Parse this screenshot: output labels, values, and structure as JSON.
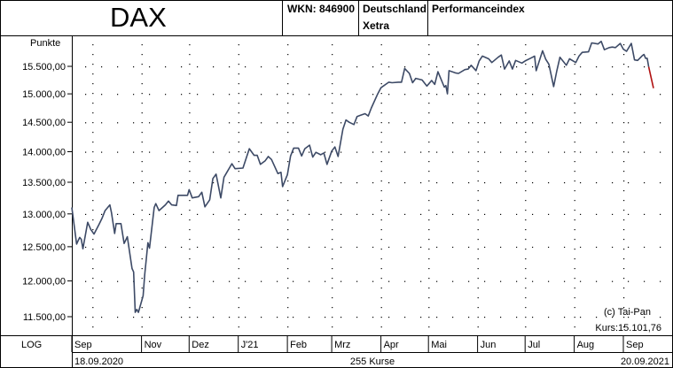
{
  "header": {
    "title": "DAX",
    "wkn": "WKN: 846900",
    "exchange_line1": "Deutschland",
    "exchange_line2": "Xetra",
    "index_type": "Performanceindex"
  },
  "footer": {
    "scale_mode": "LOG",
    "start_date": "18.09.2020",
    "count": "255 Kurse",
    "end_date": "20.09.2021"
  },
  "annotations": {
    "copyright": "(c) Tai-Pan",
    "last_price": "Kurs:15.101,76"
  },
  "colors": {
    "line": "#3d4a66",
    "last_segment": "#b01010",
    "grid_dots": "#000000"
  },
  "chart_data": {
    "type": "line",
    "ylabel": "Punkte",
    "y_scale": "log",
    "ylim": [
      11300,
      16500
    ],
    "y_ticks": [
      11500,
      12000,
      12500,
      13000,
      13500,
      14000,
      14500,
      15000,
      15500
    ],
    "y_tick_labels": [
      "11.500,00",
      "12.000,00",
      "12.500,00",
      "13.000,00",
      "13.500,00",
      "14.000,00",
      "14.500,00",
      "15.000,00",
      "15.500,00"
    ],
    "x_range": [
      "2020-09-18",
      "2021-09-20"
    ],
    "x_ticks": [
      "2020-09-18",
      "2020-11-01",
      "2020-12-01",
      "2021-01-01",
      "2021-02-01",
      "2021-03-01",
      "2021-04-01",
      "2021-05-01",
      "2021-06-01",
      "2021-07-01",
      "2021-08-01",
      "2021-09-01"
    ],
    "x_tick_labels": [
      "Sep",
      "Nov",
      "Dez",
      "J'21",
      "Feb",
      "Mrz",
      "Apr",
      "Mai",
      "Jun",
      "Jul",
      "Aug",
      "Sep"
    ],
    "x_grid": [
      "2020-10-01",
      "2020-11-01",
      "2020-12-01",
      "2021-01-01",
      "2021-02-01",
      "2021-03-01",
      "2021-04-01",
      "2021-05-01",
      "2021-06-01",
      "2021-07-01",
      "2021-08-01",
      "2021-09-01"
    ],
    "series": [
      {
        "points": [
          [
            "2020-09-18",
            13100
          ],
          [
            "2020-09-21",
            12540
          ],
          [
            "2020-09-22",
            12590
          ],
          [
            "2020-09-23",
            12640
          ],
          [
            "2020-09-24",
            12610
          ],
          [
            "2020-09-25",
            12470
          ],
          [
            "2020-09-28",
            12870
          ],
          [
            "2020-09-30",
            12760
          ],
          [
            "2020-10-02",
            12690
          ],
          [
            "2020-10-05",
            12830
          ],
          [
            "2020-10-07",
            12930
          ],
          [
            "2020-10-09",
            13050
          ],
          [
            "2020-10-12",
            13140
          ],
          [
            "2020-10-13",
            13020
          ],
          [
            "2020-10-15",
            12700
          ],
          [
            "2020-10-16",
            12850
          ],
          [
            "2020-10-19",
            12850
          ],
          [
            "2020-10-21",
            12550
          ],
          [
            "2020-10-23",
            12650
          ],
          [
            "2020-10-26",
            12180
          ],
          [
            "2020-10-27",
            12130
          ],
          [
            "2020-10-28",
            11560
          ],
          [
            "2020-10-29",
            11600
          ],
          [
            "2020-10-30",
            11560
          ],
          [
            "2020-11-02",
            11790
          ],
          [
            "2020-11-03",
            12090
          ],
          [
            "2020-11-04",
            12320
          ],
          [
            "2020-11-05",
            12560
          ],
          [
            "2020-11-06",
            12480
          ],
          [
            "2020-11-09",
            13100
          ],
          [
            "2020-11-10",
            13160
          ],
          [
            "2020-11-12",
            13050
          ],
          [
            "2020-11-16",
            13140
          ],
          [
            "2020-11-18",
            13200
          ],
          [
            "2020-11-20",
            13140
          ],
          [
            "2020-11-23",
            13130
          ],
          [
            "2020-11-24",
            13290
          ],
          [
            "2020-11-26",
            13290
          ],
          [
            "2020-11-30",
            13290
          ],
          [
            "2020-12-01",
            13380
          ],
          [
            "2020-12-03",
            13250
          ],
          [
            "2020-12-07",
            13270
          ],
          [
            "2020-12-09",
            13340
          ],
          [
            "2020-12-11",
            13110
          ],
          [
            "2020-12-14",
            13220
          ],
          [
            "2020-12-16",
            13560
          ],
          [
            "2020-12-18",
            13630
          ],
          [
            "2020-12-21",
            13250
          ],
          [
            "2020-12-23",
            13580
          ],
          [
            "2020-12-28",
            13800
          ],
          [
            "2020-12-30",
            13720
          ],
          [
            "2021-01-04",
            13730
          ],
          [
            "2021-01-06",
            13890
          ],
          [
            "2021-01-08",
            14050
          ],
          [
            "2021-01-11",
            13940
          ],
          [
            "2021-01-13",
            13940
          ],
          [
            "2021-01-15",
            13790
          ],
          [
            "2021-01-18",
            13850
          ],
          [
            "2021-01-20",
            13920
          ],
          [
            "2021-01-22",
            13870
          ],
          [
            "2021-01-26",
            13640
          ],
          [
            "2021-01-28",
            13660
          ],
          [
            "2021-01-29",
            13430
          ],
          [
            "2021-02-01",
            13620
          ],
          [
            "2021-02-03",
            13930
          ],
          [
            "2021-02-05",
            14060
          ],
          [
            "2021-02-08",
            14060
          ],
          [
            "2021-02-10",
            13930
          ],
          [
            "2021-02-12",
            14050
          ],
          [
            "2021-02-15",
            14110
          ],
          [
            "2021-02-17",
            13910
          ],
          [
            "2021-02-19",
            13990
          ],
          [
            "2021-02-22",
            13950
          ],
          [
            "2021-02-24",
            13980
          ],
          [
            "2021-02-26",
            13790
          ],
          [
            "2021-03-01",
            14010
          ],
          [
            "2021-03-03",
            14080
          ],
          [
            "2021-03-05",
            13920
          ],
          [
            "2021-03-08",
            14380
          ],
          [
            "2021-03-10",
            14540
          ],
          [
            "2021-03-12",
            14500
          ],
          [
            "2021-03-15",
            14460
          ],
          [
            "2021-03-17",
            14600
          ],
          [
            "2021-03-19",
            14620
          ],
          [
            "2021-03-22",
            14650
          ],
          [
            "2021-03-24",
            14610
          ],
          [
            "2021-03-26",
            14750
          ],
          [
            "2021-03-30",
            15000
          ],
          [
            "2021-04-01",
            15110
          ],
          [
            "2021-04-06",
            15210
          ],
          [
            "2021-04-08",
            15200
          ],
          [
            "2021-04-12",
            15210
          ],
          [
            "2021-04-14",
            15210
          ],
          [
            "2021-04-16",
            15460
          ],
          [
            "2021-04-19",
            15370
          ],
          [
            "2021-04-21",
            15200
          ],
          [
            "2021-04-23",
            15280
          ],
          [
            "2021-04-27",
            15250
          ],
          [
            "2021-04-30",
            15140
          ],
          [
            "2021-05-03",
            15240
          ],
          [
            "2021-05-05",
            15170
          ],
          [
            "2021-05-07",
            15400
          ],
          [
            "2021-05-11",
            15120
          ],
          [
            "2021-05-12",
            15150
          ],
          [
            "2021-05-13",
            15000
          ],
          [
            "2021-05-14",
            15420
          ],
          [
            "2021-05-18",
            15380
          ],
          [
            "2021-05-20",
            15370
          ],
          [
            "2021-05-24",
            15440
          ],
          [
            "2021-05-26",
            15450
          ],
          [
            "2021-05-28",
            15520
          ],
          [
            "2021-05-31",
            15420
          ],
          [
            "2021-06-02",
            15600
          ],
          [
            "2021-06-04",
            15690
          ],
          [
            "2021-06-08",
            15640
          ],
          [
            "2021-06-10",
            15570
          ],
          [
            "2021-06-14",
            15670
          ],
          [
            "2021-06-16",
            15710
          ],
          [
            "2021-06-18",
            15450
          ],
          [
            "2021-06-21",
            15600
          ],
          [
            "2021-06-23",
            15450
          ],
          [
            "2021-06-25",
            15610
          ],
          [
            "2021-06-29",
            15560
          ],
          [
            "2021-07-01",
            15600
          ],
          [
            "2021-07-05",
            15660
          ],
          [
            "2021-07-07",
            15690
          ],
          [
            "2021-07-08",
            15420
          ],
          [
            "2021-07-12",
            15790
          ],
          [
            "2021-07-14",
            15630
          ],
          [
            "2021-07-16",
            15540
          ],
          [
            "2021-07-19",
            15130
          ],
          [
            "2021-07-21",
            15420
          ],
          [
            "2021-07-23",
            15670
          ],
          [
            "2021-07-27",
            15520
          ],
          [
            "2021-07-29",
            15640
          ],
          [
            "2021-08-02",
            15570
          ],
          [
            "2021-08-04",
            15690
          ],
          [
            "2021-08-06",
            15760
          ],
          [
            "2021-08-10",
            15770
          ],
          [
            "2021-08-12",
            15940
          ],
          [
            "2021-08-16",
            15920
          ],
          [
            "2021-08-18",
            15970
          ],
          [
            "2021-08-20",
            15810
          ],
          [
            "2021-08-23",
            15850
          ],
          [
            "2021-08-25",
            15860
          ],
          [
            "2021-08-27",
            15850
          ],
          [
            "2021-08-30",
            15930
          ],
          [
            "2021-09-01",
            15820
          ],
          [
            "2021-09-03",
            15780
          ],
          [
            "2021-09-06",
            15930
          ],
          [
            "2021-09-08",
            15620
          ],
          [
            "2021-09-10",
            15610
          ],
          [
            "2021-09-13",
            15700
          ],
          [
            "2021-09-14",
            15720
          ],
          [
            "2021-09-15",
            15650
          ],
          [
            "2021-09-16",
            15650
          ],
          [
            "2021-09-17",
            15490
          ]
        ]
      },
      {
        "points": [
          [
            "2021-09-17",
            15490
          ],
          [
            "2021-09-20",
            15101.76
          ]
        ]
      }
    ]
  }
}
